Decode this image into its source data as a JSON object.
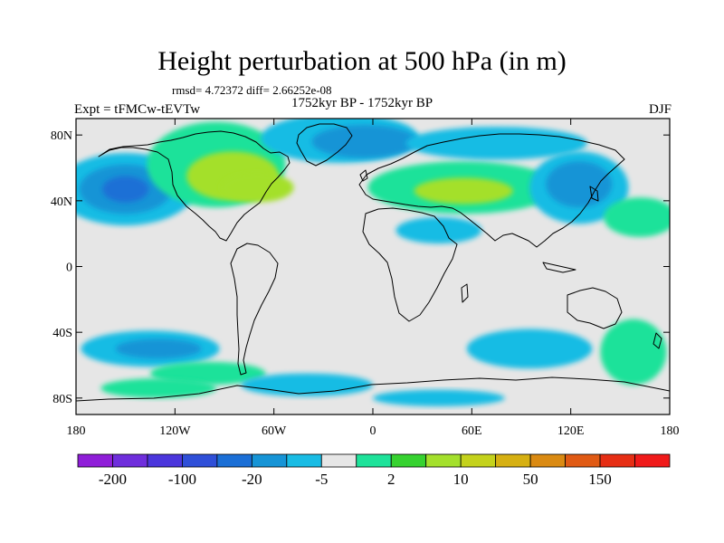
{
  "title": "Height perturbation at 500 hPa (in m)",
  "stats": "rmsd= 4.72372 diff= 2.66252e-08",
  "left_label": "Expt = tFMCw-tEVTw",
  "center_label": "1752kyr BP - 1752kyr BP",
  "right_label": "DJF",
  "axes": {
    "lon_ticks": [
      {
        "value": -180,
        "label": "180"
      },
      {
        "value": -120,
        "label": "120W"
      },
      {
        "value": -60,
        "label": "60W"
      },
      {
        "value": 0,
        "label": "0"
      },
      {
        "value": 60,
        "label": "60E"
      },
      {
        "value": 120,
        "label": "120E"
      },
      {
        "value": 180,
        "label": "180"
      }
    ],
    "lat_ticks": [
      {
        "value": 80,
        "label": "80N"
      },
      {
        "value": 40,
        "label": "40N"
      },
      {
        "value": 0,
        "label": "0"
      },
      {
        "value": -40,
        "label": "40S"
      },
      {
        "value": -80,
        "label": "80S"
      }
    ],
    "lon_range": [
      -180,
      180
    ],
    "lat_range": [
      -90,
      90
    ]
  },
  "colorbar": {
    "colors": [
      "#8f1ed8",
      "#6f2edc",
      "#4b36dc",
      "#2f4fd8",
      "#1b6fd6",
      "#1694d6",
      "#19bce4",
      "#e6e6e6",
      "#1ee29a",
      "#36d230",
      "#a4e02c",
      "#c4d21c",
      "#d6b012",
      "#da8a12",
      "#e05a14",
      "#e62e14",
      "#f01a1a"
    ],
    "labels": [
      {
        "boundary": 1,
        "text": "-200"
      },
      {
        "boundary": 3,
        "text": "-100"
      },
      {
        "boundary": 5,
        "text": "-20"
      },
      {
        "boundary": 7,
        "text": "-5"
      },
      {
        "boundary": 9,
        "text": "2"
      },
      {
        "boundary": 11,
        "text": "10"
      },
      {
        "boundary": 13,
        "text": "50"
      },
      {
        "boundary": 15,
        "text": "150"
      }
    ]
  },
  "anomaly_fields": [
    {
      "lon": -150,
      "lat": 47,
      "rx": 42,
      "ry": 22,
      "level": -1
    },
    {
      "lon": -150,
      "lat": 47,
      "rx": 28,
      "ry": 15,
      "level": -2
    },
    {
      "lon": -150,
      "lat": 47,
      "rx": 14,
      "ry": 8,
      "level": -3
    },
    {
      "lon": -95,
      "lat": 62,
      "rx": 42,
      "ry": 26,
      "level": 1
    },
    {
      "lon": -85,
      "lat": 55,
      "rx": 28,
      "ry": 15,
      "level": 2
    },
    {
      "lon": -70,
      "lat": 48,
      "rx": 22,
      "ry": 9,
      "level": 2
    },
    {
      "lon": -20,
      "lat": 78,
      "rx": 48,
      "ry": 15,
      "level": -1
    },
    {
      "lon": -5,
      "lat": 76,
      "rx": 32,
      "ry": 10,
      "level": -2
    },
    {
      "lon": 55,
      "lat": 48,
      "rx": 58,
      "ry": 16,
      "level": 1
    },
    {
      "lon": 55,
      "lat": 46,
      "rx": 30,
      "ry": 8,
      "level": 2
    },
    {
      "lon": 75,
      "lat": 75,
      "rx": 55,
      "ry": 10,
      "level": -1
    },
    {
      "lon": 125,
      "lat": 48,
      "rx": 30,
      "ry": 22,
      "level": -1
    },
    {
      "lon": 125,
      "lat": 50,
      "rx": 20,
      "ry": 14,
      "level": -2
    },
    {
      "lon": 162,
      "lat": 30,
      "rx": 22,
      "ry": 12,
      "level": 1
    },
    {
      "lon": 40,
      "lat": 22,
      "rx": 26,
      "ry": 8,
      "level": -1
    },
    {
      "lon": -135,
      "lat": -50,
      "rx": 42,
      "ry": 11,
      "level": -1
    },
    {
      "lon": -130,
      "lat": -50,
      "rx": 26,
      "ry": 6,
      "level": -2
    },
    {
      "lon": -100,
      "lat": -65,
      "rx": 35,
      "ry": 7,
      "level": 1
    },
    {
      "lon": -130,
      "lat": -74,
      "rx": 35,
      "ry": 6,
      "level": 1
    },
    {
      "lon": 95,
      "lat": -50,
      "rx": 38,
      "ry": 12,
      "level": -1
    },
    {
      "lon": 158,
      "lat": -52,
      "rx": 20,
      "ry": 20,
      "level": 1
    },
    {
      "lon": -40,
      "lat": -72,
      "rx": 40,
      "ry": 7,
      "level": -1
    },
    {
      "lon": 40,
      "lat": -80,
      "rx": 40,
      "ry": 5,
      "level": -1
    }
  ]
}
